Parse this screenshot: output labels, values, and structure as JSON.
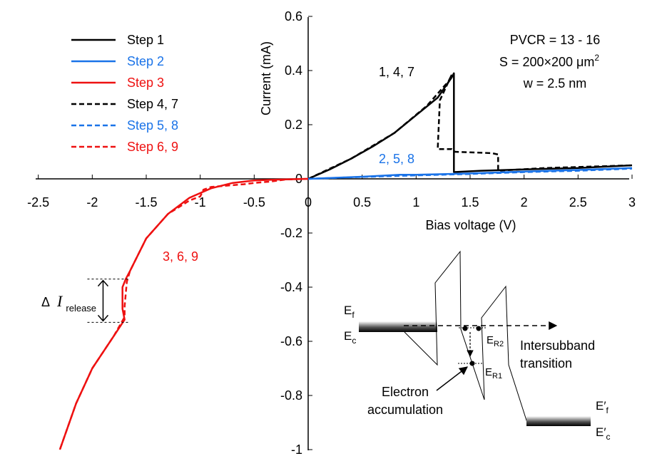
{
  "chart_data": {
    "type": "line",
    "xlabel": "Bias voltage (V)",
    "ylabel": "Current (mA)",
    "xlim": [
      -2.5,
      3
    ],
    "ylim": [
      -1,
      0.6
    ],
    "x_ticks": [
      "-2.5",
      "-2",
      "-1.5",
      "-1",
      "-0.5",
      "0",
      "0.5",
      "1",
      "1.5",
      "2",
      "2.5",
      "3"
    ],
    "y_ticks": [
      "0.6",
      "0.4",
      "0.2",
      "0",
      "-0.2",
      "-0.4",
      "-0.6",
      "-0.8",
      "-1"
    ],
    "legend_position": "top-left",
    "legend": [
      {
        "label": "Step 1",
        "color": "#000000",
        "dashed": false
      },
      {
        "label": "Step 2",
        "color": "#1a73e8",
        "dashed": false
      },
      {
        "label": "Step 3",
        "color": "#ee1111",
        "dashed": false
      },
      {
        "label": "Step 4, 7",
        "color": "#000000",
        "dashed": true
      },
      {
        "label": "Step 5, 8",
        "color": "#1a73e8",
        "dashed": true
      },
      {
        "label": "Step 6, 9",
        "color": "#ee1111",
        "dashed": true
      }
    ],
    "series": [
      {
        "name": "Step 1",
        "color": "#000000",
        "dashed": false,
        "points": [
          [
            0,
            0
          ],
          [
            0.2,
            0.035
          ],
          [
            0.4,
            0.075
          ],
          [
            0.6,
            0.12
          ],
          [
            0.8,
            0.17
          ],
          [
            1.0,
            0.235
          ],
          [
            1.2,
            0.3
          ],
          [
            1.33,
            0.375
          ],
          [
            1.35,
            0.39
          ],
          [
            1.35,
            0.025
          ],
          [
            1.6,
            0.03
          ],
          [
            2.0,
            0.035
          ],
          [
            2.5,
            0.04
          ],
          [
            3.0,
            0.05
          ]
        ]
      },
      {
        "name": "Step 4, 7",
        "color": "#000000",
        "dashed": true,
        "points": [
          [
            0,
            0
          ],
          [
            0.4,
            0.075
          ],
          [
            0.8,
            0.17
          ],
          [
            1.1,
            0.27
          ],
          [
            1.3,
            0.36
          ],
          [
            1.33,
            0.385
          ],
          [
            1.22,
            0.29
          ],
          [
            1.2,
            0.11
          ],
          [
            1.33,
            0.11
          ],
          [
            1.36,
            0.1
          ],
          [
            1.7,
            0.095
          ],
          [
            1.76,
            0.09
          ],
          [
            1.76,
            0.03
          ],
          [
            2.2,
            0.04
          ],
          [
            2.6,
            0.045
          ],
          [
            3.0,
            0.05
          ]
        ]
      },
      {
        "name": "Step 2",
        "color": "#1a73e8",
        "dashed": false,
        "points": [
          [
            0,
            0
          ],
          [
            0.5,
            0.008
          ],
          [
            0.85,
            0.015
          ],
          [
            1.0,
            0.015
          ],
          [
            1.5,
            0.02
          ],
          [
            2.0,
            0.027
          ],
          [
            2.5,
            0.033
          ],
          [
            3.0,
            0.04
          ]
        ]
      },
      {
        "name": "Step 5, 8",
        "color": "#1a73e8",
        "dashed": true,
        "points": [
          [
            0,
            0
          ],
          [
            0.5,
            0.007
          ],
          [
            1.0,
            0.013
          ],
          [
            1.5,
            0.018
          ],
          [
            2.0,
            0.025
          ],
          [
            2.5,
            0.03
          ],
          [
            3.0,
            0.038
          ]
        ]
      },
      {
        "name": "Step 3",
        "color": "#ee1111",
        "dashed": false,
        "points": [
          [
            0,
            0
          ],
          [
            -0.3,
            -0.003
          ],
          [
            -0.5,
            -0.006
          ],
          [
            -0.7,
            -0.015
          ],
          [
            -0.9,
            -0.035
          ],
          [
            -1.1,
            -0.07
          ],
          [
            -1.3,
            -0.13
          ],
          [
            -1.5,
            -0.22
          ],
          [
            -1.65,
            -0.34
          ],
          [
            -1.69,
            -0.37
          ],
          [
            -1.72,
            -0.4
          ],
          [
            -1.72,
            -0.48
          ],
          [
            -1.7,
            -0.52
          ],
          [
            -1.8,
            -0.58
          ],
          [
            -2.0,
            -0.7
          ],
          [
            -2.15,
            -0.83
          ],
          [
            -2.3,
            -1.0
          ]
        ]
      },
      {
        "name": "Step 6, 9",
        "color": "#ee1111",
        "dashed": true,
        "points": [
          [
            0,
            0
          ],
          [
            -0.2,
            -0.002
          ],
          [
            -0.35,
            -0.01
          ],
          [
            -0.5,
            -0.015
          ],
          [
            -0.6,
            -0.02
          ],
          [
            -0.9,
            -0.03
          ],
          [
            -0.97,
            -0.04
          ],
          [
            -1.0,
            -0.065
          ],
          [
            -1.1,
            -0.08
          ],
          [
            -1.3,
            -0.13
          ],
          [
            -1.5,
            -0.22
          ],
          [
            -1.65,
            -0.34
          ],
          [
            -1.68,
            -0.38
          ],
          [
            -1.7,
            -0.47
          ],
          [
            -1.7,
            -0.51
          ],
          [
            -1.8,
            -0.58
          ],
          [
            -2.0,
            -0.7
          ],
          [
            -2.15,
            -0.83
          ],
          [
            -2.3,
            -1.0
          ]
        ]
      }
    ],
    "annotations": {
      "group_black": "1, 4, 7",
      "group_blue": "2, 5, 8",
      "group_red": "3, 6, 9",
      "pvcr": "PVCR = 13 - 16",
      "area_text": "S = 200×200 μm",
      "area_exp": "2",
      "width": "w = 2.5 nm",
      "release_delta": "Δ",
      "release_I": "I",
      "release_sub": "release",
      "release_top": -0.37,
      "release_bottom": -0.53,
      "release_x": -1.9
    },
    "band_diagram": {
      "ef_main": "E",
      "ef_sub": "f",
      "ec_main": "E",
      "ec_sub": "c",
      "er2_main": "E",
      "er2_sub": "R2",
      "er1_main": "E",
      "er1_sub": "R1",
      "intersubband_line1": "Intersubband",
      "intersubband_line2": "transition",
      "electron_line1": "Electron",
      "electron_line2": "accumulation",
      "efp_main": "E′",
      "efp_sub": "f",
      "ecp_main": "E′",
      "ecp_sub": "c"
    }
  }
}
